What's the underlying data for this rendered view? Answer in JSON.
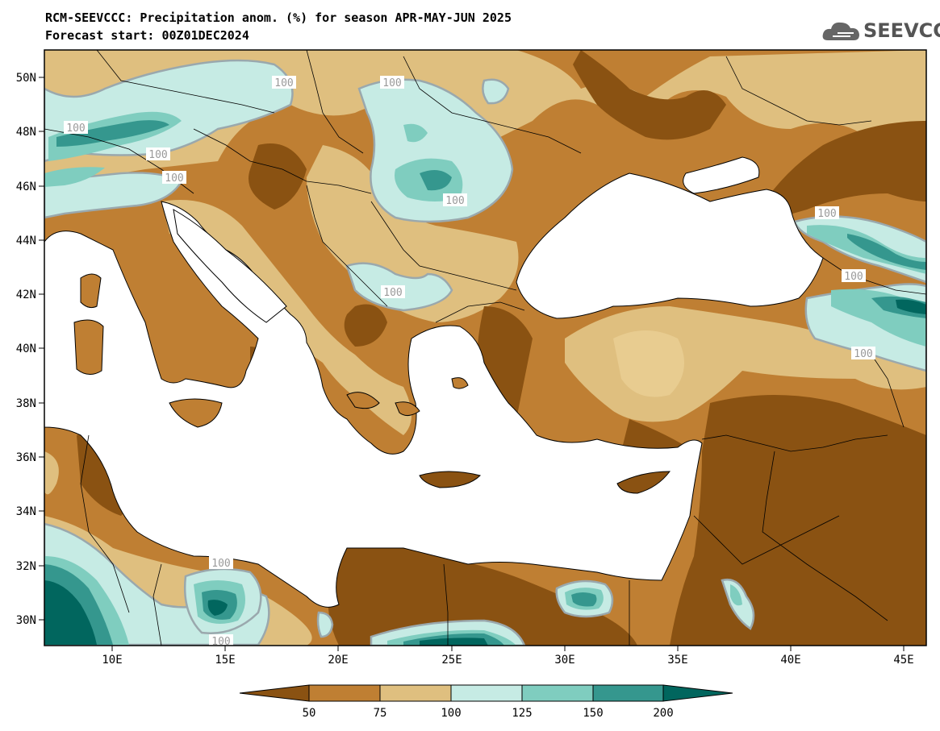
{
  "title": {
    "line1": "RCM-SEEVCCC: Precipitation anom. (%) for season APR-MAY-JUN 2025",
    "line2": "Forecast start: 00Z01DEC2024"
  },
  "logo": {
    "text": "SEEVCCC",
    "icon": "cloud-icon"
  },
  "map": {
    "lon_range": [
      7,
      46
    ],
    "lat_range": [
      29,
      51
    ],
    "lat_ticks": [
      "50N",
      "48N",
      "46N",
      "44N",
      "42N",
      "40N",
      "38N",
      "36N",
      "34N",
      "32N",
      "30N"
    ],
    "lon_ticks": [
      "10E",
      "15E",
      "20E",
      "25E",
      "30E",
      "35E",
      "40E",
      "45E"
    ],
    "contour_labels": [
      "100",
      "100",
      "100",
      "100",
      "100",
      "100",
      "100",
      "100",
      "100",
      "100",
      "100",
      "100"
    ]
  },
  "colorbar": {
    "levels": [
      "50",
      "75",
      "100",
      "125",
      "150",
      "200"
    ],
    "colors": {
      "lt50": "#8a5212",
      "50_75": "#bf7f33",
      "75_100": "#dfbf7f",
      "100_125": "#c6ebe4",
      "125_150": "#7fcdbf",
      "150_200": "#35978e",
      "gt200": "#01665e"
    }
  }
}
